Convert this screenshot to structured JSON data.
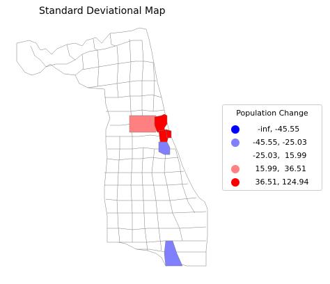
{
  "title": "Standard Deviational Map",
  "legend": {
    "title": "Population Change",
    "entries": [
      {
        "label": "    -inf, -45.55",
        "color": "#0000ff"
      },
      {
        "label": "  -45.55, -25.03",
        "color": "#8080ff"
      },
      {
        "label": "  -25.03,  15.99",
        "color": "#ffffff"
      },
      {
        "label": "   15.99,  36.51",
        "color": "#ff8080"
      },
      {
        "label": "   36.51, 124.94",
        "color": "#ff0000"
      }
    ]
  },
  "colors": {
    "boundary": "#7a7a7a",
    "background_fill": "#ffffff",
    "class_light_red": "#ff8080",
    "class_red": "#ff0000",
    "class_light_blue": "#8080ff"
  }
}
